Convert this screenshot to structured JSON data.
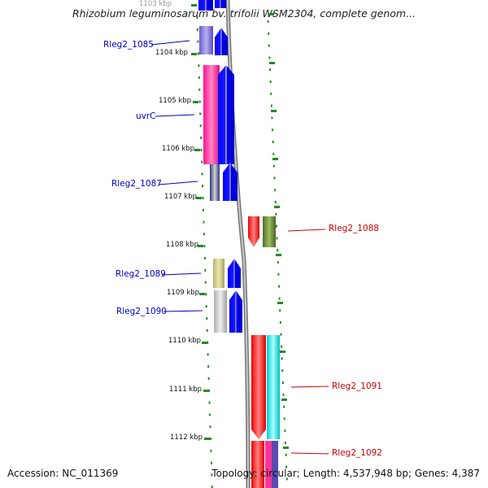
{
  "title": "Rhizobium leguminosarum bv. trifolii WSM2304, complete genom...",
  "footer": {
    "accession": "Accession: NC_011369",
    "summary": "Topology: circular; Length: 4,537,948 bp; Genes: 4,387"
  },
  "colors": {
    "left_label": "#0000cc",
    "right_label": "#cc0000",
    "tick": "#228b22",
    "backbone": "#999999"
  },
  "kbp_ticks": [
    {
      "text": "1103 kbp",
      "id": "1103"
    },
    {
      "text": "1104 kbp",
      "id": "1104"
    },
    {
      "text": "1105 kbp",
      "id": "1105"
    },
    {
      "text": "1106 kbp",
      "id": "1106"
    },
    {
      "text": "1107 kbp",
      "id": "1107"
    },
    {
      "text": "1108 kbp",
      "id": "1108"
    },
    {
      "text": "1109 kbp",
      "id": "1109"
    },
    {
      "text": "1110 kbp",
      "id": "1110"
    },
    {
      "text": "1111 kbp",
      "id": "1111"
    },
    {
      "text": "1112 kbp",
      "id": "1112"
    }
  ],
  "genes_left": [
    {
      "label": "Rleg2_1085"
    },
    {
      "label": "uvrC"
    },
    {
      "label": "Rleg2_1087"
    },
    {
      "label": "Rleg2_1089"
    },
    {
      "label": "Rleg2_1090"
    }
  ],
  "genes_right": [
    {
      "label": "Rleg2_1088"
    },
    {
      "label": "Rleg2_1091"
    },
    {
      "label": "Rleg2_1092"
    }
  ]
}
